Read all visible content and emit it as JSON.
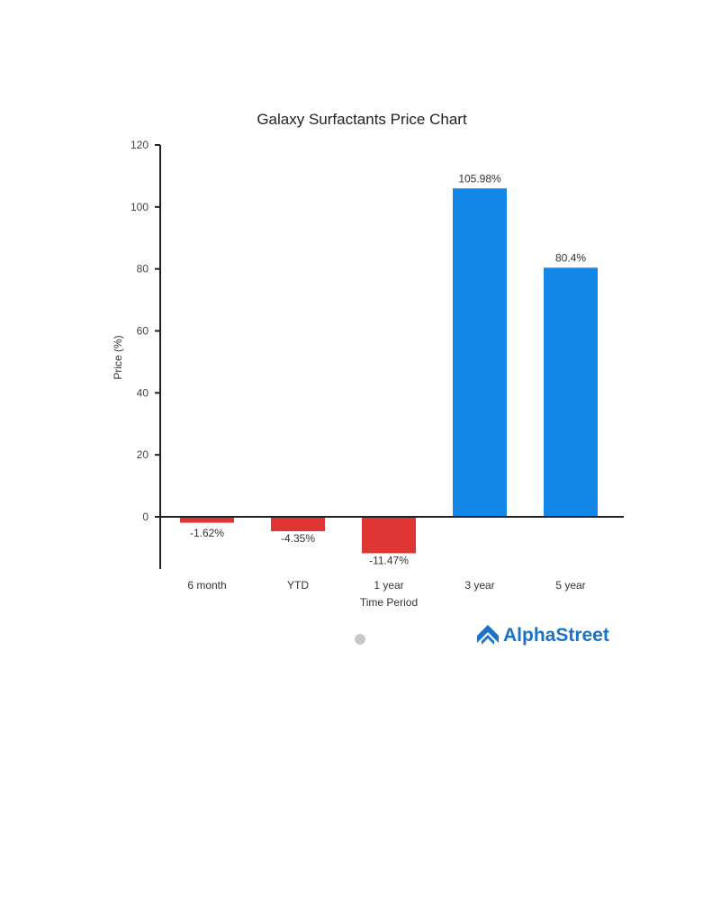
{
  "chart_data": {
    "type": "bar",
    "title": "Galaxy Surfactants Price Chart",
    "xlabel": "Time Period",
    "ylabel": "Price (%)",
    "categories": [
      "6 month",
      "YTD",
      "1 year",
      "3 year",
      "5 year"
    ],
    "values": [
      -1.62,
      -4.35,
      -11.47,
      105.98,
      80.4
    ],
    "data_labels": [
      "-1.62%",
      "-4.35%",
      "-11.47%",
      "105.98%",
      "80.4%"
    ],
    "yticks": [
      "0",
      "20",
      "40",
      "60",
      "80",
      "100",
      "120"
    ],
    "ylim": [
      -17,
      120
    ],
    "grid": false,
    "legend": "none",
    "colors": {
      "positive": "#1287e8",
      "negative": "#e03535",
      "axis": "#222222"
    }
  },
  "branding": {
    "name": "AlphaStreet",
    "icon": "alphastreet-chevron-logo",
    "color": "#1a73c9"
  }
}
